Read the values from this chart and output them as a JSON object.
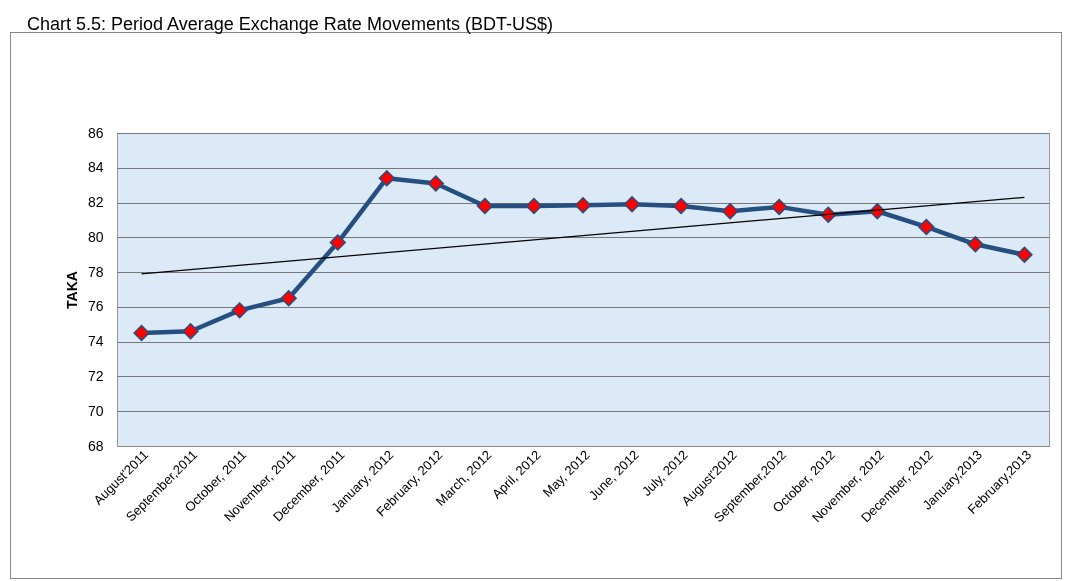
{
  "chart_data": {
    "type": "line",
    "title": "Chart 5.5: Period Average Exchange Rate Movements (BDT-US$)",
    "ylabel": "TAKA",
    "categories": [
      "August'2011",
      "September,2011",
      "October, 2011",
      "November, 2011",
      "December, 2011",
      "January, 2012",
      "February, 2012",
      "March, 2012",
      "April, 2012",
      "May, 2012",
      "June, 2012",
      "July, 2012",
      "August'2012",
      "September,2012",
      "October, 2012",
      "November, 2012",
      "December, 2012",
      "January,2013",
      "February,2013"
    ],
    "series": [
      {
        "color": "#254f80",
        "marker": "diamond",
        "values": [
          74.5,
          74.6,
          75.8,
          76.5,
          79.7,
          83.4,
          83.1,
          81.8,
          81.8,
          81.85,
          81.9,
          81.8,
          81.5,
          81.75,
          81.3,
          81.5,
          80.6,
          79.6,
          79.0
        ]
      },
      {
        "type": "line",
        "color": "#000000",
        "marker": "none",
        "x": [
          "August'2011",
          "February,2013"
        ],
        "values": [
          77.9,
          82.3
        ]
      }
    ],
    "ylim": [
      68,
      86
    ],
    "yticks": [
      68,
      70,
      72,
      74,
      76,
      78,
      80,
      82,
      84,
      86
    ],
    "grid": "y"
  }
}
